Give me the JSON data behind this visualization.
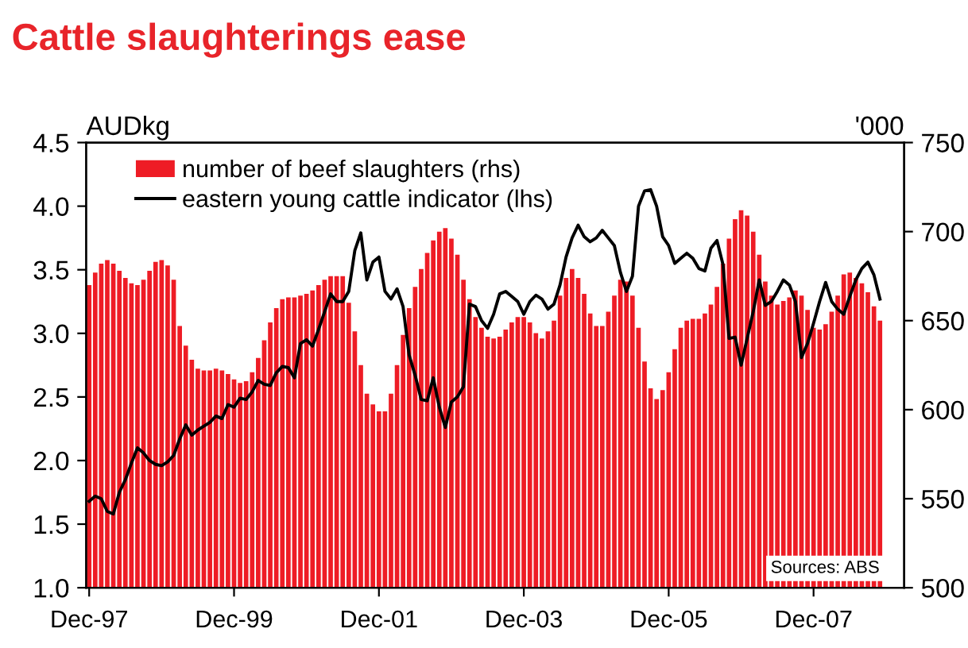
{
  "chart_data": {
    "type": "bar",
    "title": "Cattle slaughterings ease",
    "ylabel": "AUDkg",
    "y2label": "'000",
    "categories": [
      "Dec-97",
      null,
      null,
      null,
      null,
      null,
      null,
      null,
      null,
      null,
      null,
      null,
      null,
      null,
      null,
      null,
      null,
      null,
      null,
      null,
      null,
      null,
      null,
      null,
      "Dec-99",
      null,
      null,
      null,
      null,
      null,
      null,
      null,
      null,
      null,
      null,
      null,
      null,
      null,
      null,
      null,
      null,
      null,
      null,
      null,
      null,
      null,
      null,
      null,
      "Dec-01",
      null,
      null,
      null,
      null,
      null,
      null,
      null,
      null,
      null,
      null,
      null,
      null,
      null,
      null,
      null,
      null,
      null,
      null,
      null,
      null,
      null,
      null,
      null,
      "Dec-03",
      null,
      null,
      null,
      null,
      null,
      null,
      null,
      null,
      null,
      null,
      null,
      null,
      null,
      null,
      null,
      null,
      null,
      null,
      null,
      null,
      null,
      null,
      null,
      "Dec-05",
      null,
      null,
      null,
      null,
      null,
      null,
      null,
      null,
      null,
      null,
      null,
      null,
      null,
      null,
      null,
      null,
      null,
      null,
      null,
      null,
      null,
      null,
      null,
      "Dec-07",
      null,
      null,
      null,
      null,
      null,
      null,
      null,
      null,
      null,
      null,
      null
    ],
    "series": [
      {
        "name": "number of beef slaughters (rhs)",
        "axis": "y2",
        "color": "#ee1c25",
        "values": [
          670,
          677,
          682,
          684,
          682,
          678,
          674,
          671,
          670,
          673,
          678,
          683,
          684,
          681,
          673,
          647,
          636,
          628,
          623,
          622,
          622,
          623,
          622,
          620,
          617,
          615,
          616,
          621,
          629,
          639,
          649,
          657,
          662,
          663,
          663,
          664,
          665,
          667,
          670,
          673,
          675,
          675,
          675,
          660,
          644,
          625,
          609,
          603,
          599,
          599,
          609,
          625,
          642,
          657,
          669,
          679,
          688,
          695,
          700,
          702,
          696,
          687,
          673,
          662,
          652,
          646,
          641,
          640,
          641,
          645,
          649,
          652,
          652,
          649,
          643,
          640,
          644,
          650,
          664,
          674,
          679,
          674,
          665,
          654,
          647,
          647,
          655,
          664,
          673,
          672,
          664,
          646,
          627,
          612,
          606,
          611,
          621,
          634,
          646,
          650,
          651,
          651,
          654,
          659,
          669,
          682,
          696,
          707,
          712,
          709,
          700,
          687,
          672,
          664,
          659,
          661,
          663,
          667,
          664,
          656,
          646,
          645,
          648,
          655,
          664,
          676,
          677,
          674,
          671,
          666,
          658,
          650
        ]
      },
      {
        "name": "eastern young cattle indicator (lhs)",
        "type": "line",
        "axis": "y",
        "color": "#000000",
        "values": [
          1.68,
          1.72,
          1.7,
          1.6,
          1.58,
          1.75,
          1.85,
          1.98,
          2.1,
          2.06,
          2.0,
          1.97,
          1.96,
          1.99,
          2.04,
          2.17,
          2.28,
          2.2,
          2.24,
          2.27,
          2.3,
          2.35,
          2.33,
          2.44,
          2.42,
          2.49,
          2.48,
          2.54,
          2.63,
          2.6,
          2.59,
          2.69,
          2.74,
          2.73,
          2.65,
          2.92,
          2.95,
          2.9,
          3.03,
          3.17,
          3.31,
          3.25,
          3.25,
          3.33,
          3.65,
          3.79,
          3.42,
          3.56,
          3.6,
          3.33,
          3.27,
          3.35,
          3.21,
          2.83,
          2.67,
          2.48,
          2.47,
          2.65,
          2.42,
          2.26,
          2.46,
          2.5,
          2.58,
          3.23,
          3.21,
          3.1,
          3.04,
          3.15,
          3.31,
          3.33,
          3.29,
          3.25,
          3.15,
          3.25,
          3.3,
          3.27,
          3.19,
          3.23,
          3.38,
          3.6,
          3.75,
          3.85,
          3.76,
          3.72,
          3.75,
          3.81,
          3.75,
          3.69,
          3.48,
          3.33,
          3.45,
          4.0,
          4.12,
          4.13,
          4.0,
          3.76,
          3.69,
          3.55,
          3.59,
          3.63,
          3.59,
          3.51,
          3.49,
          3.67,
          3.73,
          3.54,
          2.96,
          2.97,
          2.75,
          2.96,
          3.17,
          3.42,
          3.22,
          3.25,
          3.33,
          3.42,
          3.38,
          3.25,
          2.81,
          2.92,
          3.08,
          3.25,
          3.4,
          3.25,
          3.19,
          3.15,
          3.29,
          3.42,
          3.51,
          3.56,
          3.46,
          3.27
        ]
      }
    ],
    "ylim": [
      1.0,
      4.5
    ],
    "yticks": [
      {
        "value": 1.0,
        "label": "1.0"
      },
      {
        "value": 1.5,
        "label": "1.5"
      },
      {
        "value": 2.0,
        "label": "2.0"
      },
      {
        "value": 2.5,
        "label": "2.5"
      },
      {
        "value": 3.0,
        "label": "3.0"
      },
      {
        "value": 3.5,
        "label": "3.5"
      },
      {
        "value": 4.0,
        "label": "4.0"
      },
      {
        "value": 4.5,
        "label": "4.5"
      }
    ],
    "y2lim": [
      500,
      750
    ],
    "y2ticks": [
      500,
      550,
      600,
      650,
      700,
      750
    ],
    "legend": "top left",
    "grid": false,
    "marker": "none",
    "line_style": "solid",
    "annotations": [
      "Sources: ABS"
    ]
  }
}
